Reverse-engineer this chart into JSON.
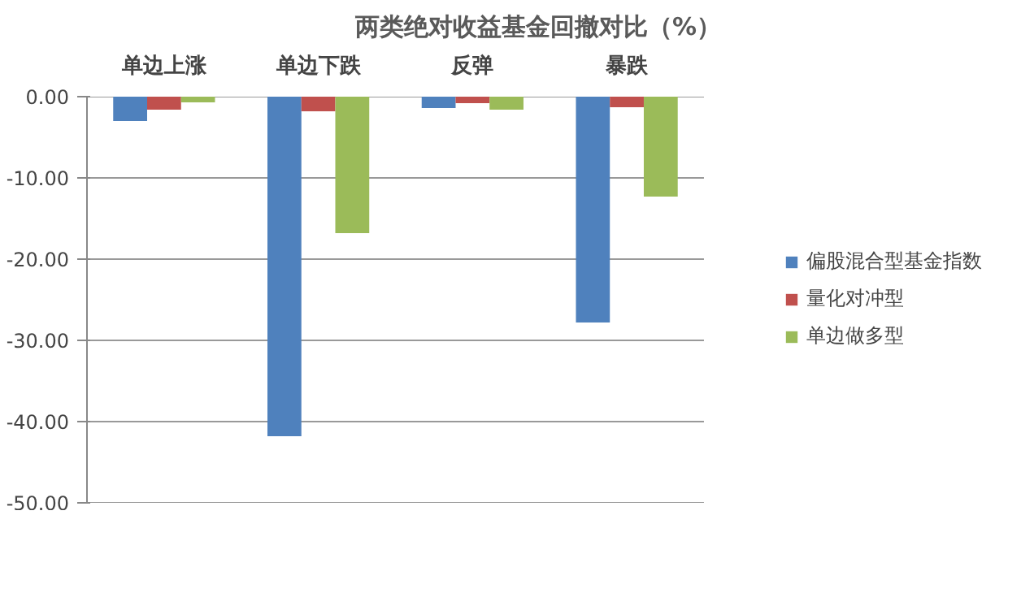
{
  "chart_data": {
    "type": "bar",
    "title": "两类绝对收益基金回撤对比（%）",
    "categories": [
      "单边上涨",
      "单边下跌",
      "反弹",
      "暴跌"
    ],
    "series": [
      {
        "name": "偏股混合型基金指数",
        "color": "#4f81bd",
        "values": [
          -3.0,
          -41.8,
          -1.4,
          -27.8
        ]
      },
      {
        "name": "量化对冲型",
        "color": "#c0504d",
        "values": [
          -1.6,
          -1.8,
          -0.8,
          -1.3
        ]
      },
      {
        "name": "单边做多型",
        "color": "#9bbb59",
        "values": [
          -0.7,
          -16.8,
          -1.6,
          -12.3
        ]
      }
    ],
    "ylim": [
      -50,
      0
    ],
    "yticks": [
      {
        "value": 0,
        "label": "0.00"
      },
      {
        "value": -10,
        "label": "-10.00"
      },
      {
        "value": -20,
        "label": "-20.00"
      },
      {
        "value": -30,
        "label": "-30.00"
      },
      {
        "value": -40,
        "label": "-40.00"
      },
      {
        "value": -50,
        "label": "-50.00"
      }
    ],
    "grid": "y",
    "legend": "right"
  }
}
